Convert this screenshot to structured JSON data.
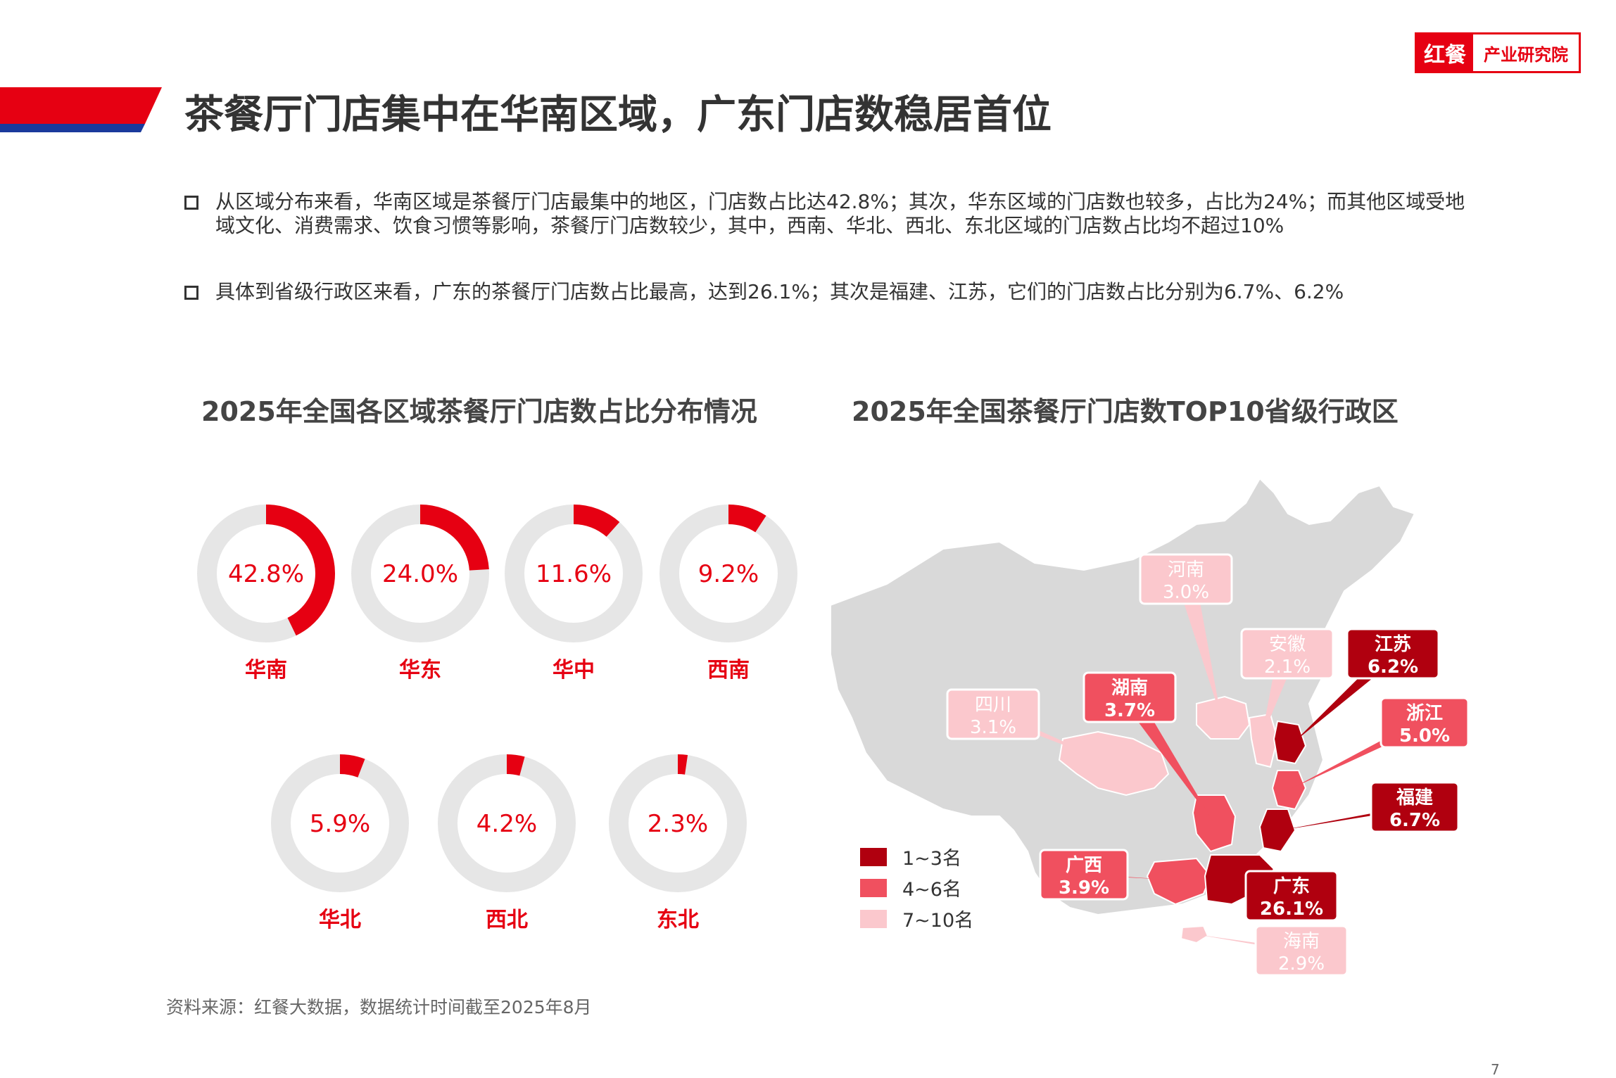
{
  "brand": {
    "mark": "红餐",
    "name": "产业研究院"
  },
  "page_title": "茶餐厅门店集中在华南区域，广东门店数稳居首位",
  "bullets": [
    "从区域分布来看，华南区域是茶餐厅门店最集中的地区，门店数占比达42.8%；其次，华东区域的门店数也较多，占比为24%；而其他区域受地域文化、消费需求、饮食习惯等影响，茶餐厅门店数较少，其中，西南、华北、西北、东北区域的门店数占比均不超过10%",
    "具体到省级行政区来看，广东的茶餐厅门店数占比最高，达到26.1%；其次是福建、江苏，它们的门店数占比分别为6.7%、6.2%"
  ],
  "chart_data": [
    {
      "type": "pie",
      "title": "2025年全国各区域茶餐厅门店数占比分布情况",
      "categories": [
        "华南",
        "华东",
        "华中",
        "西南",
        "华北",
        "西北",
        "东北"
      ],
      "values": [
        42.8,
        24.0,
        11.6,
        9.2,
        5.9,
        4.2,
        2.3
      ],
      "value_labels": [
        "42.8%",
        "24.0%",
        "11.6%",
        "9.2%",
        "5.9%",
        "4.2%",
        "2.3%"
      ]
    },
    {
      "type": "map",
      "title": "2025年全国茶餐厅门店数TOP10省级行政区",
      "categories": [
        "广东",
        "福建",
        "江苏",
        "浙江",
        "湖南",
        "广西",
        "四川",
        "河南",
        "海南",
        "安徽"
      ],
      "values": [
        26.1,
        6.7,
        6.2,
        5.0,
        3.7,
        3.9,
        3.1,
        3.0,
        2.9,
        2.1
      ],
      "value_labels": [
        "26.1%",
        "6.7%",
        "6.2%",
        "5.0%",
        "3.7%",
        "3.9%",
        "3.1%",
        "3.0%",
        "2.9%",
        "2.1%"
      ],
      "rank_group": [
        "1~3名",
        "1~3名",
        "1~3名",
        "4~6名",
        "4~6名",
        "4~6名",
        "7~10名",
        "7~10名",
        "7~10名",
        "7~10名"
      ],
      "legend": [
        "1~3名",
        "4~6名",
        "7~10名"
      ],
      "legend_colors": [
        "#b0000f",
        "#f0505f",
        "#fbc8cd"
      ]
    }
  ],
  "colors": {
    "accent": "#e60012",
    "ring_track": "#e6e6e6",
    "map_base": "#d9d9d9",
    "blue_accent": "#1a3a9c"
  },
  "source_note": "资料来源：红餐大数据，数据统计时间截至2025年8月",
  "page_number": "7"
}
